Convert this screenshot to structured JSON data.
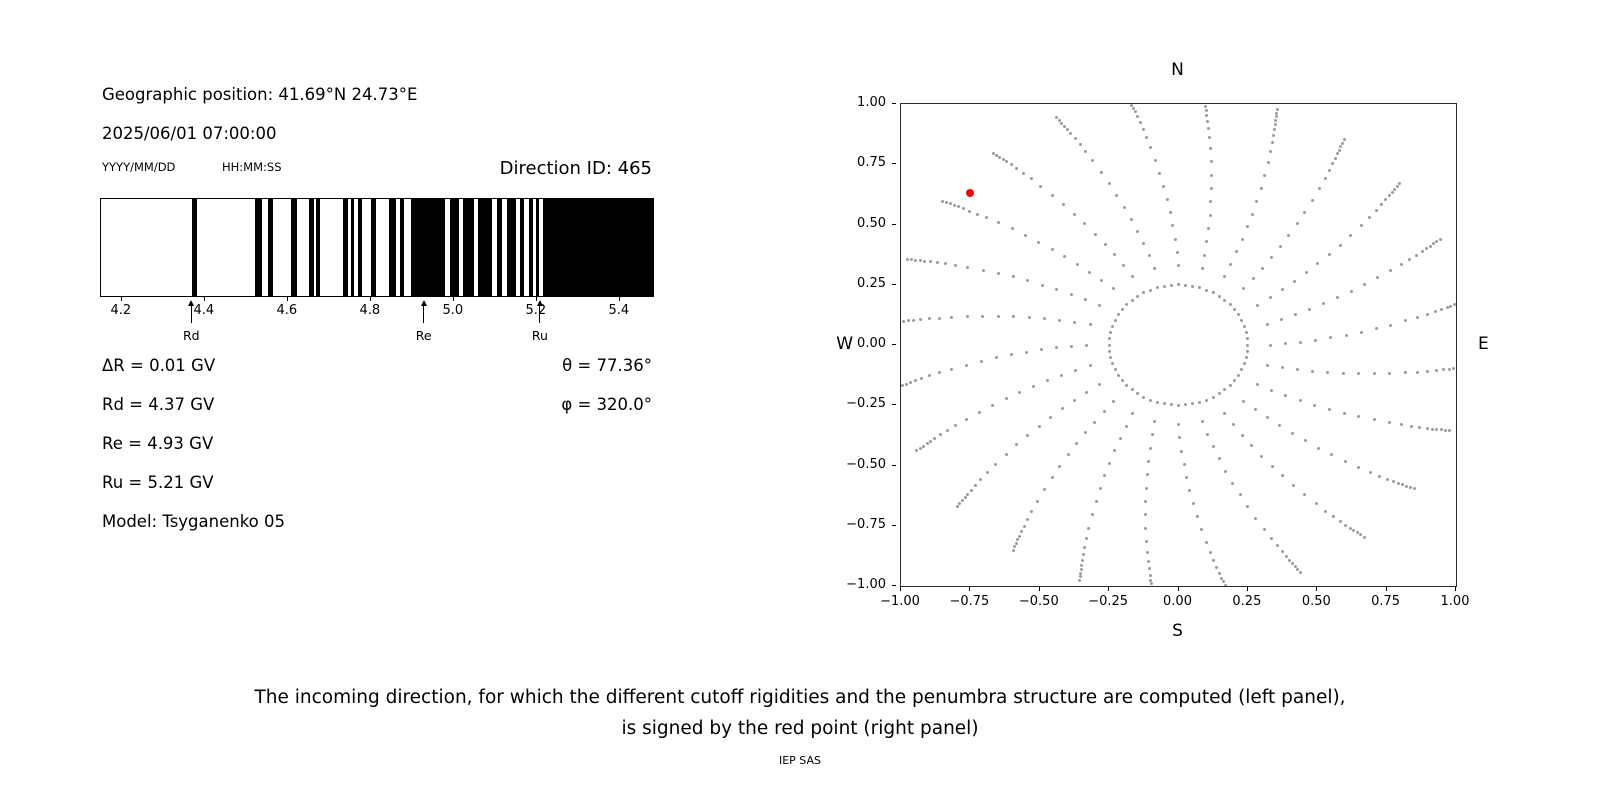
{
  "figure": {
    "background": "#ffffff"
  },
  "left_panel": {
    "geo_position": "Geographic position: 41.69°N 24.73°E",
    "datetime": "2025/06/01 07:00:00",
    "date_format_label": "YYYY/MM/DD",
    "time_format_label": "HH:MM:SS",
    "direction_id_label": "Direction ID: 465",
    "delta_r": "ΔR = 0.01 GV",
    "rd": "Rd = 4.37 GV",
    "re": "Re = 4.93 GV",
    "ru": "Ru = 5.21 GV",
    "model": "Model: Tsyganenko 05",
    "theta": "θ = 77.36°",
    "phi": "φ = 320.0°"
  },
  "caption": {
    "line1": "The incoming direction, for which the different cutoff rigidities and the penumbra structure are computed (left panel),",
    "line2": "is signed by the red point (right panel)",
    "credit": "IEP SAS"
  },
  "chart_data": [
    {
      "name": "penumbra-structure",
      "type": "bar",
      "title": "",
      "xlabel": "",
      "ylabel": "",
      "xlim": [
        4.15,
        5.48
      ],
      "tick_values": [
        4.2,
        4.4,
        4.6,
        4.8,
        5.0,
        5.2,
        5.4
      ],
      "tick_labels": [
        "4.2",
        "4.4",
        "4.6",
        "4.8",
        "5.0",
        "5.2",
        "5.4"
      ],
      "bar_color": "#000000",
      "black_intervals_gv": [
        [
          4.368,
          4.382
        ],
        [
          4.52,
          4.538
        ],
        [
          4.553,
          4.565
        ],
        [
          4.608,
          4.622
        ],
        [
          4.65,
          4.662
        ],
        [
          4.668,
          4.678
        ],
        [
          4.733,
          4.745
        ],
        [
          4.752,
          4.76
        ],
        [
          4.768,
          4.778
        ],
        [
          4.8,
          4.812
        ],
        [
          4.843,
          4.86
        ],
        [
          4.87,
          4.88
        ],
        [
          4.898,
          4.98
        ],
        [
          4.99,
          5.012
        ],
        [
          5.022,
          5.048
        ],
        [
          5.058,
          5.092
        ],
        [
          5.104,
          5.116
        ],
        [
          5.128,
          5.15
        ],
        [
          5.16,
          5.17
        ],
        [
          5.18,
          5.19
        ],
        [
          5.198,
          5.206
        ],
        [
          5.214,
          5.48
        ]
      ],
      "markers": [
        {
          "label": "Rd",
          "value_gv": 4.37
        },
        {
          "label": "Re",
          "value_gv": 4.93
        },
        {
          "label": "Ru",
          "value_gv": 5.21
        }
      ]
    },
    {
      "name": "incoming-directions",
      "type": "scatter",
      "title": "",
      "xlim": [
        -1,
        1
      ],
      "ylim": [
        -1,
        1
      ],
      "tick_values": [
        -1,
        -0.75,
        -0.5,
        -0.25,
        0,
        0.25,
        0.5,
        0.75,
        1
      ],
      "tick_labels": [
        "−1.00",
        "−0.75",
        "−0.50",
        "−0.25",
        "0.00",
        "0.25",
        "0.50",
        "0.75",
        "1.00"
      ],
      "direction_labels": {
        "top": "N",
        "bottom": "S",
        "left": "W",
        "right": "E"
      },
      "dot_color": "#9b9b9b",
      "inner_ring": {
        "radius": 0.25,
        "count": 60
      },
      "spokes": {
        "count": 24,
        "start_deg": 0,
        "step_deg": 15,
        "drift_deg": -10,
        "r_start": 0.33,
        "r_end": 1.04
      },
      "spoke_radii": [
        0.33,
        0.385,
        0.44,
        0.495,
        0.55,
        0.605,
        0.66,
        0.715,
        0.77,
        0.825,
        0.87,
        0.905,
        0.935,
        0.96,
        0.98,
        0.995,
        1.01,
        1.025,
        1.04
      ],
      "red_point": {
        "x": -0.75,
        "y": 0.63,
        "color": "#ff0000"
      }
    }
  ]
}
